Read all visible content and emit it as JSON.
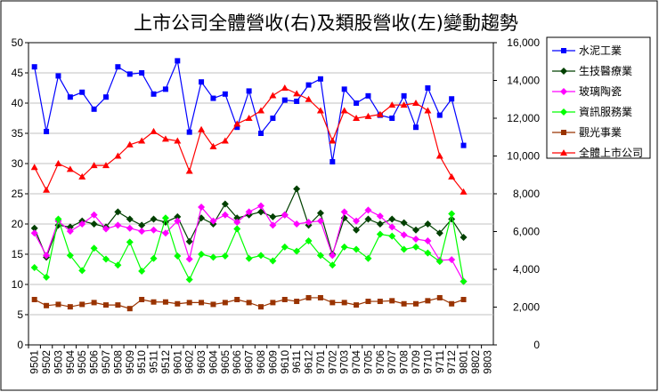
{
  "colors": {
    "cement": "#0000ff",
    "biotech": "#004000",
    "glass": "#ff00ff",
    "info": "#00ff00",
    "tourism": "#993300",
    "total": "#ff0000"
  },
  "chart_data": {
    "type": "line",
    "title": "上市公司全體營收(右)及類股營收(左)變動趨勢",
    "xlabel": "",
    "ylabel": "",
    "ylim": [
      0,
      50
    ],
    "y2lim": [
      0,
      16000
    ],
    "y_ticks": [
      "0",
      "5",
      "10",
      "15",
      "20",
      "25",
      "30",
      "35",
      "40",
      "45",
      "50"
    ],
    "y2_ticks": [
      "0",
      "2,000",
      "4,000",
      "6,000",
      "8,000",
      "10,000",
      "12,000",
      "14,000",
      "16,000"
    ],
    "legend_position": "right",
    "grid": true,
    "categories": [
      "9501",
      "9502",
      "9503",
      "9504",
      "9505",
      "9506",
      "9507",
      "9508",
      "9509",
      "9510",
      "9511",
      "9512",
      "9601",
      "9602",
      "9603",
      "9604",
      "9605",
      "9606",
      "9607",
      "9608",
      "9609",
      "9610",
      "9611",
      "9612",
      "9701",
      "9702",
      "9703",
      "9704",
      "9705",
      "9706",
      "9707",
      "9708",
      "9709",
      "9710",
      "9711",
      "9712",
      "9801",
      "9802",
      "9803"
    ],
    "series": [
      {
        "name": "水泥工業",
        "axis": "left",
        "marker": "square",
        "color_key": "cement",
        "values": [
          46.0,
          35.3,
          44.5,
          41.0,
          41.8,
          39.0,
          41.0,
          46.0,
          44.8,
          45.0,
          41.5,
          42.3,
          47.0,
          35.2,
          43.5,
          40.8,
          41.5,
          36.0,
          42.0,
          35.0,
          37.5,
          40.5,
          40.3,
          43.0,
          44.0,
          30.3,
          42.3,
          40.0,
          41.2,
          38.0,
          37.5,
          41.2,
          36.0,
          42.5,
          38.0,
          40.7,
          33.0,
          null,
          null
        ]
      },
      {
        "name": "生技醫療業",
        "axis": "left",
        "marker": "diamond",
        "color_key": "biotech",
        "values": [
          19.3,
          14.5,
          19.8,
          19.5,
          20.5,
          20.0,
          19.5,
          22.0,
          20.8,
          19.8,
          20.8,
          20.3,
          21.2,
          17.1,
          21.0,
          20.0,
          23.3,
          21.0,
          21.5,
          22.0,
          21.2,
          21.5,
          25.8,
          19.8,
          21.8,
          15.0,
          21.0,
          19.0,
          20.8,
          20.0,
          20.8,
          20.2,
          19.0,
          20.0,
          18.5,
          20.8,
          17.8,
          null,
          null
        ]
      },
      {
        "name": "玻璃陶瓷",
        "axis": "left",
        "marker": "diamond",
        "color_key": "glass",
        "values": [
          18.5,
          14.8,
          20.5,
          18.8,
          20.0,
          21.5,
          19.2,
          19.8,
          19.3,
          18.8,
          19.0,
          18.5,
          20.5,
          14.2,
          22.8,
          20.5,
          21.5,
          20.3,
          22.0,
          23.0,
          19.8,
          21.5,
          20.0,
          20.3,
          20.5,
          14.8,
          22.0,
          20.5,
          22.3,
          21.3,
          19.5,
          18.2,
          17.5,
          17.2,
          14.0,
          14.1,
          10.5,
          null,
          null
        ]
      },
      {
        "name": "資訊服務業",
        "axis": "left",
        "marker": "diamond",
        "color_key": "info",
        "values": [
          12.8,
          11.2,
          20.8,
          14.8,
          12.3,
          16.0,
          14.2,
          13.2,
          17.0,
          12.2,
          14.3,
          21.0,
          14.7,
          10.8,
          15.0,
          14.5,
          14.7,
          19.2,
          14.3,
          14.8,
          13.9,
          16.2,
          15.5,
          17.2,
          14.8,
          13.2,
          16.2,
          15.8,
          14.3,
          18.3,
          18.0,
          15.8,
          16.2,
          15.2,
          13.8,
          21.7,
          10.5,
          null,
          null
        ]
      },
      {
        "name": "觀光事業",
        "axis": "left",
        "marker": "square",
        "color_key": "tourism",
        "values": [
          7.5,
          6.5,
          6.7,
          6.3,
          6.7,
          7.0,
          6.6,
          6.6,
          6.0,
          7.5,
          7.1,
          7.1,
          6.8,
          7.0,
          7.0,
          6.7,
          7.0,
          7.5,
          7.0,
          6.3,
          7.0,
          7.5,
          7.2,
          7.8,
          7.8,
          7.0,
          7.0,
          6.6,
          7.2,
          7.2,
          7.3,
          6.8,
          6.8,
          7.3,
          7.8,
          6.8,
          7.5,
          null,
          null
        ]
      },
      {
        "name": "全體上市公司",
        "axis": "right",
        "marker": "triangle",
        "color_key": "total",
        "values": [
          9400,
          8200,
          9600,
          9300,
          8900,
          9500,
          9500,
          10000,
          10600,
          10800,
          11300,
          10900,
          10800,
          9200,
          11400,
          10500,
          10800,
          11700,
          12000,
          12400,
          13200,
          13600,
          13300,
          13000,
          12400,
          10800,
          12400,
          12000,
          12100,
          12200,
          12700,
          12700,
          12800,
          12400,
          10000,
          8900,
          8100,
          null,
          null
        ]
      }
    ]
  }
}
